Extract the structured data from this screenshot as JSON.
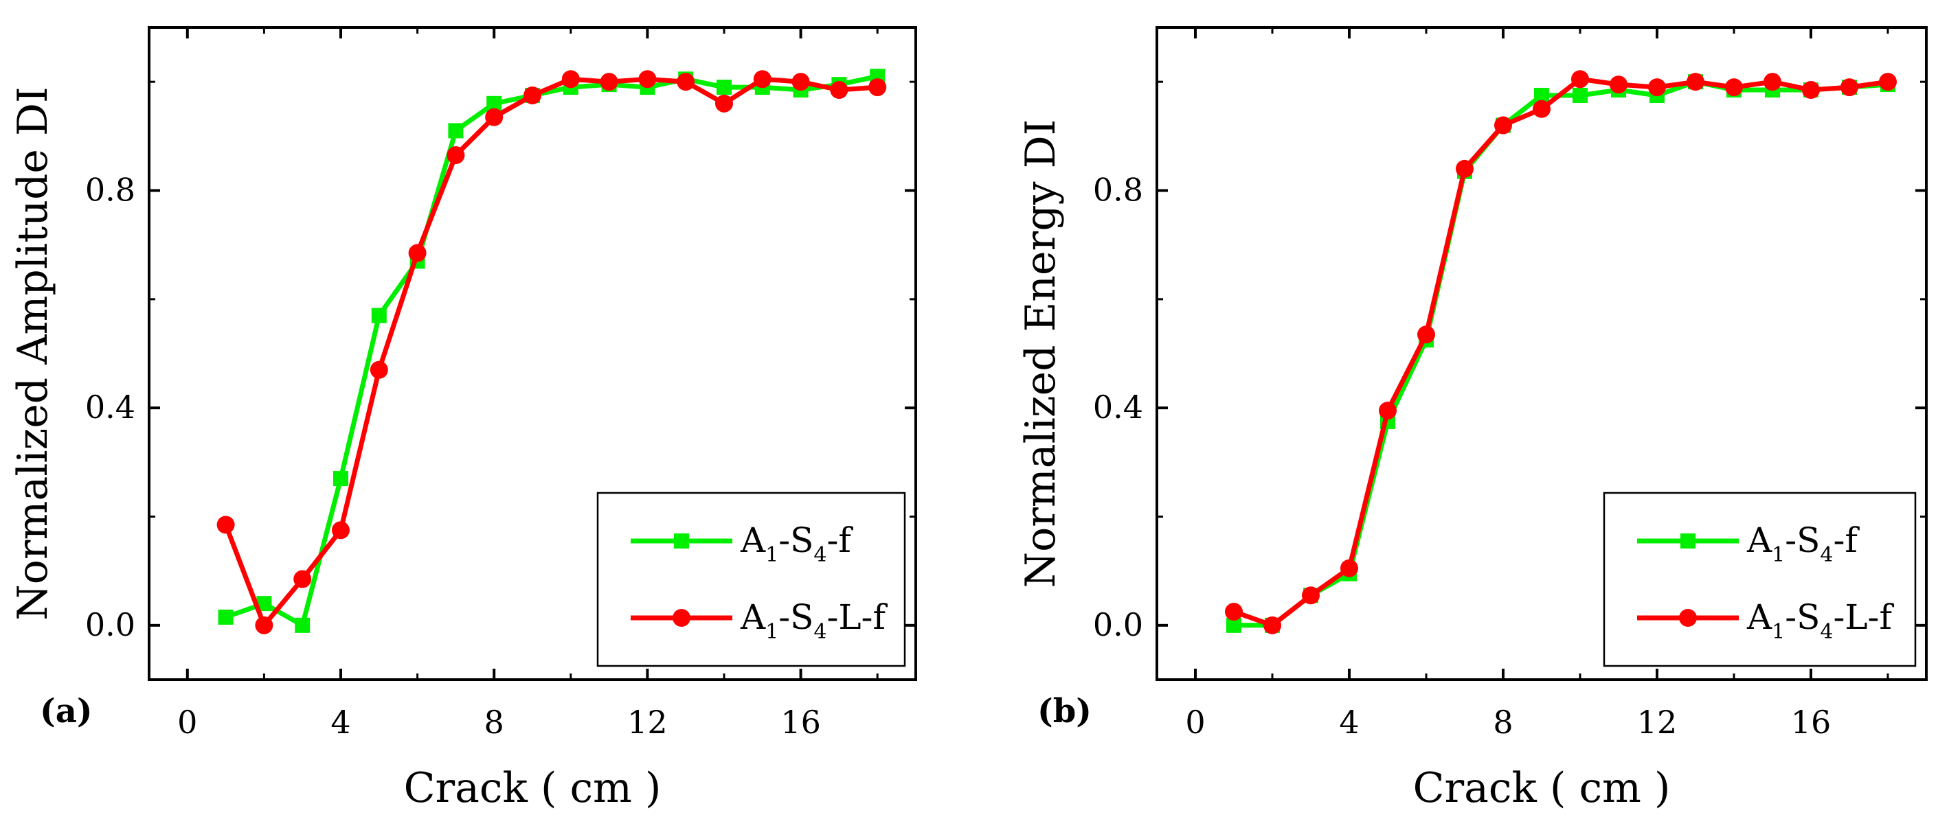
{
  "chart_data": [
    {
      "type": "line",
      "panel_label": "(a)",
      "xlabel": "Crack ( cm )",
      "ylabel": "Normalized Amplitude DI",
      "xlim": [
        -1,
        19
      ],
      "ylim": [
        -0.1,
        1.1
      ],
      "xticks": [
        0,
        4,
        8,
        12,
        16
      ],
      "yticks": [
        0.0,
        0.4,
        0.8
      ],
      "xtick_labels": [
        "0",
        "4",
        "8",
        "12",
        "16"
      ],
      "ytick_labels": [
        "0.0",
        "0.4",
        "0.8"
      ],
      "x": [
        1,
        2,
        3,
        4,
        5,
        6,
        7,
        8,
        9,
        10,
        11,
        12,
        13,
        14,
        15,
        16,
        17,
        18
      ],
      "legend": "bottom-right",
      "series": [
        {
          "name": "A1-S4-f",
          "legend_main": "A",
          "legend_sub1": "1",
          "legend_mid": "-S",
          "legend_sub2": "4",
          "legend_tail": "-f",
          "color": "#00ee00",
          "marker": "square",
          "values": [
            0.015,
            0.04,
            0.0,
            0.27,
            0.57,
            0.67,
            0.91,
            0.96,
            0.975,
            0.99,
            0.995,
            0.99,
            1.005,
            0.99,
            0.99,
            0.985,
            0.995,
            1.01
          ]
        },
        {
          "name": "A1-S4-L-f",
          "legend_main": "A",
          "legend_sub1": "1",
          "legend_mid": "-S",
          "legend_sub2": "4",
          "legend_tail": "-L-f",
          "color": "#ff0000",
          "marker": "circle",
          "values": [
            0.185,
            0.0,
            0.085,
            0.175,
            0.47,
            0.685,
            0.865,
            0.935,
            0.975,
            1.005,
            1.0,
            1.005,
            1.0,
            0.96,
            1.005,
            1.0,
            0.985,
            0.99
          ]
        }
      ]
    },
    {
      "type": "line",
      "panel_label": "(b)",
      "xlabel": "Crack ( cm )",
      "ylabel": "Normalized Energy DI",
      "xlim": [
        -1,
        19
      ],
      "ylim": [
        -0.1,
        1.1
      ],
      "xticks": [
        0,
        4,
        8,
        12,
        16
      ],
      "yticks": [
        0.0,
        0.4,
        0.8
      ],
      "xtick_labels": [
        "0",
        "4",
        "8",
        "12",
        "16"
      ],
      "ytick_labels": [
        "0.0",
        "0.4",
        "0.8"
      ],
      "x": [
        1,
        2,
        3,
        4,
        5,
        6,
        7,
        8,
        9,
        10,
        11,
        12,
        13,
        14,
        15,
        16,
        17,
        18
      ],
      "legend": "bottom-right",
      "series": [
        {
          "name": "A1-S4-f",
          "legend_main": "A",
          "legend_sub1": "1",
          "legend_mid": "-S",
          "legend_sub2": "4",
          "legend_tail": "-f",
          "color": "#00ee00",
          "marker": "square",
          "values": [
            0.0,
            0.0,
            0.055,
            0.095,
            0.375,
            0.525,
            0.835,
            0.92,
            0.975,
            0.975,
            0.985,
            0.975,
            1.0,
            0.985,
            0.985,
            0.985,
            0.99,
            0.995
          ]
        },
        {
          "name": "A1-S4-L-f",
          "legend_main": "A",
          "legend_sub1": "1",
          "legend_mid": "-S",
          "legend_sub2": "4",
          "legend_tail": "-L-f",
          "color": "#ff0000",
          "marker": "circle",
          "values": [
            0.025,
            0.0,
            0.055,
            0.105,
            0.395,
            0.535,
            0.84,
            0.92,
            0.95,
            1.005,
            0.995,
            0.99,
            1.0,
            0.99,
            1.0,
            0.985,
            0.99,
            1.0
          ]
        }
      ]
    }
  ]
}
